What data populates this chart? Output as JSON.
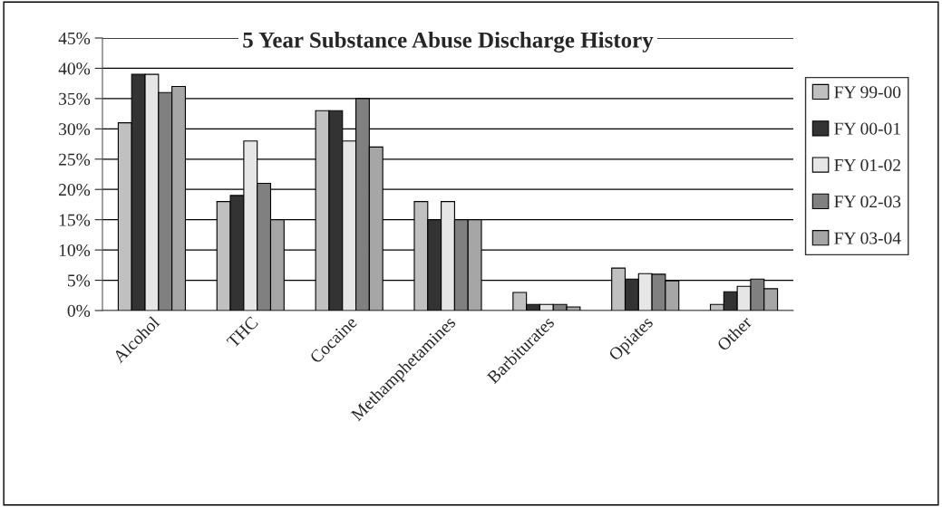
{
  "chart_data": {
    "type": "bar",
    "title": "5 Year Substance Abuse Discharge History",
    "categories": [
      "Alcohol",
      "THC",
      "Cocaine",
      "Methamphetamines",
      "Barbiturates",
      "Opiates",
      "Other"
    ],
    "series": [
      {
        "name": "FY 99-00",
        "color": "#c0c0c0",
        "values": [
          31,
          18,
          33,
          18,
          3,
          7,
          1
        ]
      },
      {
        "name": "FY 00-01",
        "color": "#333333",
        "values": [
          39,
          19,
          33,
          15,
          1,
          5.2,
          3.1
        ]
      },
      {
        "name": "FY 01-02",
        "color": "#e6e6e6",
        "values": [
          39,
          28,
          28,
          18,
          1,
          6.1,
          4
        ]
      },
      {
        "name": "FY 02-03",
        "color": "#808080",
        "values": [
          36,
          21,
          35,
          15,
          1,
          6,
          5.2
        ]
      },
      {
        "name": "FY 03-04",
        "color": "#a6a6a6",
        "values": [
          37,
          15,
          27,
          15,
          0.6,
          4.9,
          3.6
        ]
      }
    ],
    "ylim": [
      0,
      45
    ],
    "yticks": [
      {
        "value": 0,
        "label": "0%"
      },
      {
        "value": 5,
        "label": "5%"
      },
      {
        "value": 10,
        "label": "10%"
      },
      {
        "value": 15,
        "label": "15%"
      },
      {
        "value": 20,
        "label": "20%"
      },
      {
        "value": 25,
        "label": "25%"
      },
      {
        "value": 30,
        "label": "30%"
      },
      {
        "value": 35,
        "label": "35%"
      },
      {
        "value": 40,
        "label": "40%"
      },
      {
        "value": 45,
        "label": "45%"
      }
    ],
    "grid": "y",
    "legend": "right"
  }
}
